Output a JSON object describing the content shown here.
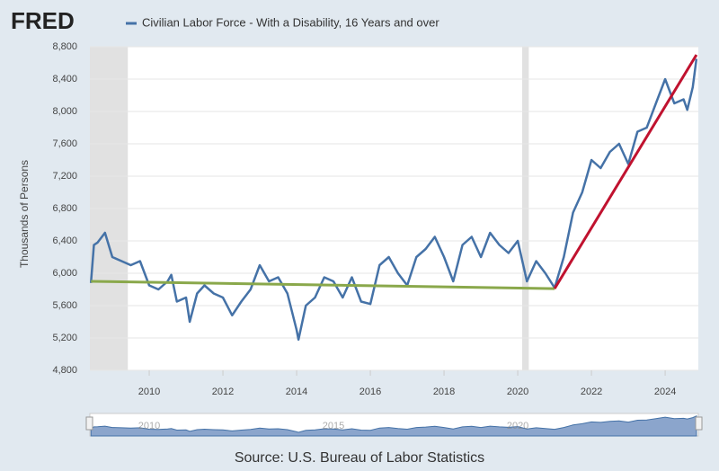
{
  "logo": "FRED",
  "source": "Source: U.S. Bureau of Labor Statistics",
  "chart_data": {
    "type": "line",
    "y_label": "Thousands of Persons",
    "xlim": [
      2008.39,
      2024.9
    ],
    "xticks": [
      2010,
      2012,
      2014,
      2016,
      2018,
      2020,
      2022,
      2024
    ],
    "ylim": [
      4800,
      8800
    ],
    "yticks": [
      {
        "value": 4800,
        "label": "4,800"
      },
      {
        "value": 5200,
        "label": "5,200"
      },
      {
        "value": 5600,
        "label": "5,600"
      },
      {
        "value": 6000,
        "label": "6,000"
      },
      {
        "value": 6400,
        "label": "6,400"
      },
      {
        "value": 6800,
        "label": "6,800"
      },
      {
        "value": 7200,
        "label": "7,200"
      },
      {
        "value": 7600,
        "label": "7,600"
      },
      {
        "value": 8000,
        "label": "8,000"
      },
      {
        "value": 8400,
        "label": "8,400"
      },
      {
        "value": 8800,
        "label": "8,800"
      }
    ],
    "grid": true,
    "shaded": [
      [
        2008.39,
        2009.42
      ],
      [
        2020.12,
        2020.3
      ]
    ],
    "navigator_ticks": [
      2010,
      2015,
      2020
    ],
    "series": [
      {
        "name": "Civilian Labor Force - With a Disability, 16 Years and over",
        "color": "#4572a7",
        "x": [
          2008.42,
          2008.5,
          2008.6,
          2008.8,
          2009.0,
          2009.25,
          2009.5,
          2009.75,
          2010.0,
          2010.25,
          2010.5,
          2010.6,
          2010.75,
          2011.0,
          2011.1,
          2011.3,
          2011.5,
          2011.75,
          2012.0,
          2012.25,
          2012.5,
          2012.75,
          2013.0,
          2013.25,
          2013.5,
          2013.75,
          2014.0,
          2014.05,
          2014.25,
          2014.5,
          2014.75,
          2015.0,
          2015.25,
          2015.5,
          2015.75,
          2016.0,
          2016.25,
          2016.5,
          2016.75,
          2017.0,
          2017.25,
          2017.5,
          2017.75,
          2018.0,
          2018.25,
          2018.5,
          2018.75,
          2019.0,
          2019.25,
          2019.5,
          2019.75,
          2020.0,
          2020.25,
          2020.5,
          2020.75,
          2021.0,
          2021.25,
          2021.5,
          2021.75,
          2022.0,
          2022.25,
          2022.5,
          2022.75,
          2023.0,
          2023.25,
          2023.5,
          2023.75,
          2024.0,
          2024.25,
          2024.5,
          2024.6,
          2024.75,
          2024.85
        ],
        "values": [
          5880,
          6350,
          6380,
          6500,
          6200,
          6150,
          6100,
          6150,
          5850,
          5800,
          5900,
          5980,
          5650,
          5700,
          5400,
          5750,
          5850,
          5750,
          5700,
          5480,
          5650,
          5800,
          6100,
          5900,
          5950,
          5750,
          5300,
          5180,
          5600,
          5700,
          5950,
          5900,
          5700,
          5950,
          5650,
          5620,
          6100,
          6200,
          6000,
          5850,
          6200,
          6300,
          6450,
          6200,
          5900,
          6350,
          6450,
          6200,
          6500,
          6350,
          6250,
          6400,
          5900,
          6150,
          6000,
          5820,
          6200,
          6750,
          7000,
          7400,
          7300,
          7500,
          7600,
          7350,
          7750,
          7800,
          8100,
          8400,
          8100,
          8150,
          8020,
          8300,
          8650
        ]
      },
      {
        "color": "#8aa84b",
        "x": [
          2008.42,
          2021.0
        ],
        "values": [
          5900,
          5810
        ]
      },
      {
        "color": "#c0122f",
        "x": [
          2021.0,
          2024.85
        ],
        "values": [
          5810,
          8700
        ]
      }
    ]
  }
}
